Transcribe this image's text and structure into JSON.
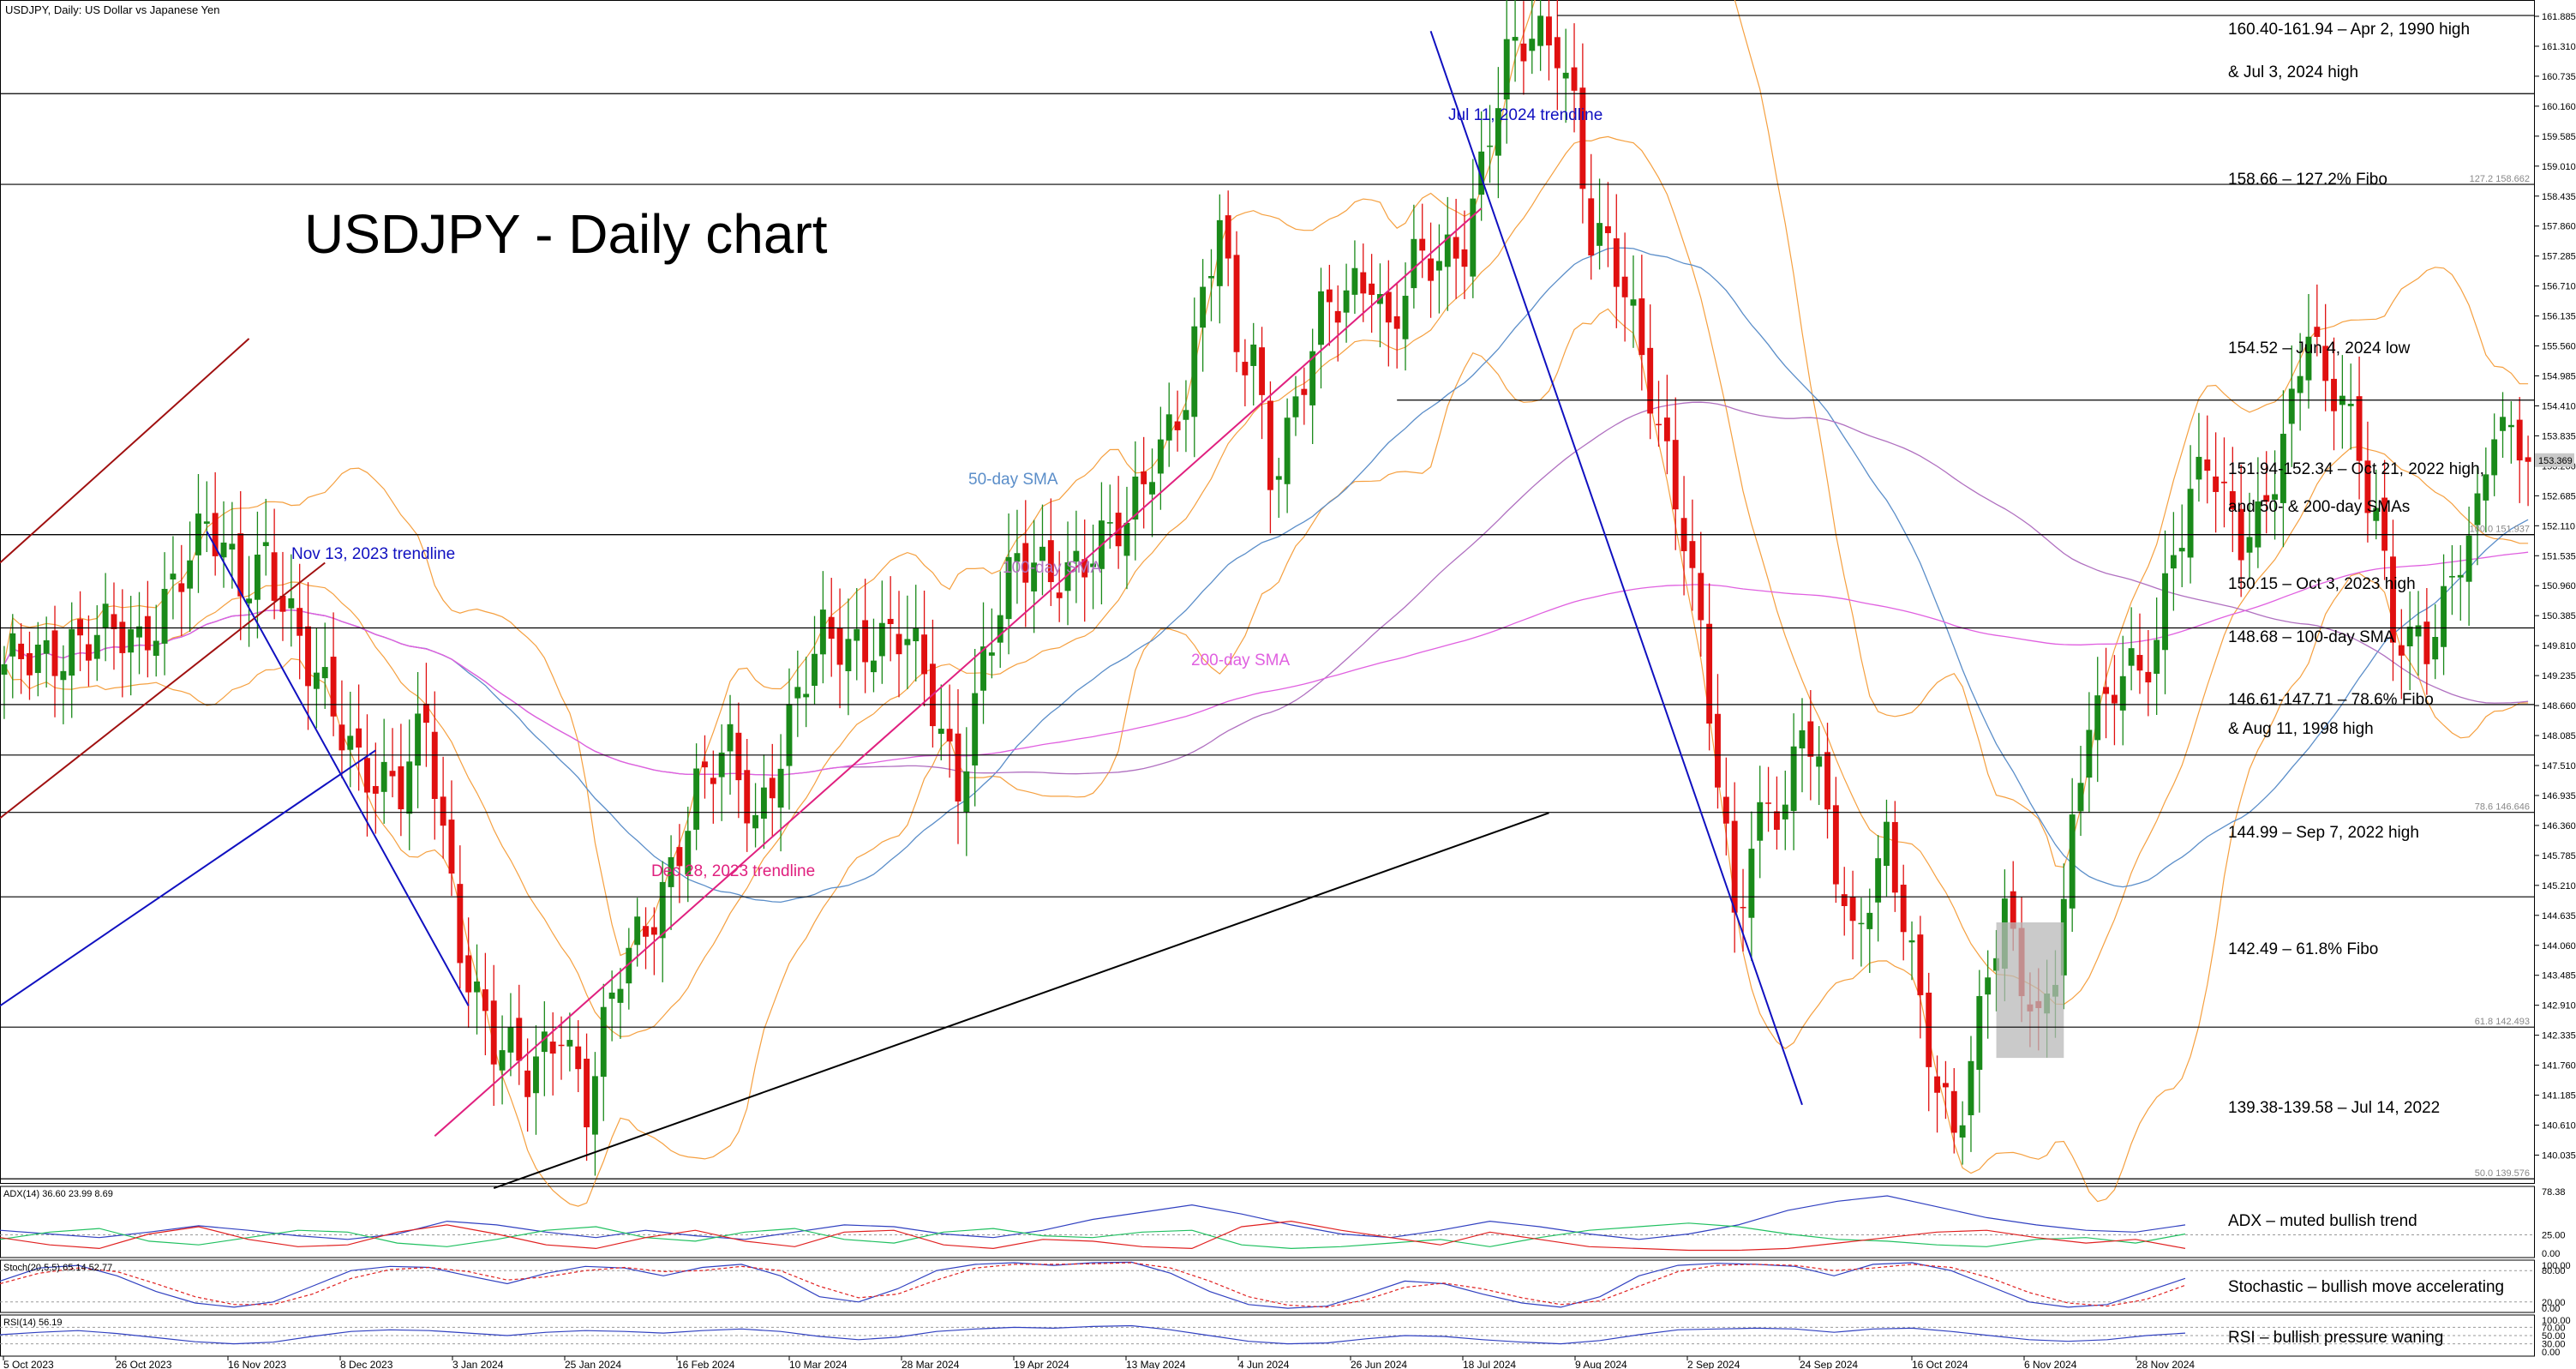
{
  "header": {
    "symbol_line": "USDJPY, Daily:  US Dollar vs Japanese Yen"
  },
  "title": "USDJPY - Daily chart",
  "colors": {
    "bull": "#1a8a1a",
    "bear": "#e01010",
    "bollinger": "#f5a040",
    "sma50": "#5b8ec9",
    "sma100": "#b070c0",
    "sma200": "#e060e0",
    "trend_red": "#a01010",
    "trend_blue": "#1010c0",
    "trend_pink": "#e0207f",
    "trend_black": "#000000",
    "adx": "#3040c0",
    "plus_di": "#20c060",
    "minus_di": "#e02020",
    "stoch_main": "#3040c0",
    "stoch_signal": "#e02020",
    "rsi": "#3040c0",
    "box_fill": "#b8b8b8"
  },
  "chart_data": [
    {
      "type": "candlestick",
      "title": "USDJPY - Daily chart",
      "ylim": [
        139.5,
        162.0
      ],
      "y_ticks": [
        "161.885",
        "161.310",
        "160.735",
        "160.160",
        "159.585",
        "159.010",
        "158.435",
        "157.860",
        "157.285",
        "156.710",
        "156.135",
        "155.560",
        "154.985",
        "154.410",
        "153.835",
        "153.260",
        "152.685",
        "152.110",
        "151.535",
        "150.960",
        "150.385",
        "149.810",
        "149.235",
        "148.660",
        "148.085",
        "147.510",
        "146.935",
        "146.360",
        "145.785",
        "145.210",
        "144.635",
        "144.060",
        "143.485",
        "142.910",
        "142.335",
        "141.760",
        "141.185",
        "140.610",
        "140.035"
      ],
      "x_ticks": [
        "5 Oct 2023",
        "26 Oct 2023",
        "16 Nov 2023",
        "8 Dec 2023",
        "3 Jan 2024",
        "25 Jan 2024",
        "16 Feb 2024",
        "10 Mar 2024",
        "28 Mar 2024",
        "19 Apr 2024",
        "13 May 2024",
        "4 Jun 2024",
        "26 Jun 2024",
        "18 Jul 2024",
        "9 Aug 2024",
        "2 Sep 2024",
        "24 Sep 2024",
        "16 Oct 2024",
        "6 Nov 2024",
        "28 Nov 2024"
      ],
      "price_path": [
        [
          0,
          149.2
        ],
        [
          8,
          150.0
        ],
        [
          16,
          149.8
        ],
        [
          20,
          151.2
        ],
        [
          24,
          151.9
        ],
        [
          28,
          151.0
        ],
        [
          31,
          151.8
        ],
        [
          36,
          149.2
        ],
        [
          42,
          147.8
        ],
        [
          47,
          146.9
        ],
        [
          50,
          148.2
        ],
        [
          54,
          144.3
        ],
        [
          58,
          142.1
        ],
        [
          62,
          141.4
        ],
        [
          66,
          142.8
        ],
        [
          69,
          141.0
        ],
        [
          73,
          143.4
        ],
        [
          77,
          144.9
        ],
        [
          82,
          146.9
        ],
        [
          86,
          147.7
        ],
        [
          89,
          146.6
        ],
        [
          93,
          148.3
        ],
        [
          97,
          149.8
        ],
        [
          103,
          150.1
        ],
        [
          107,
          149.8
        ],
        [
          110,
          148.6
        ],
        [
          113,
          147.3
        ],
        [
          116,
          149.6
        ],
        [
          120,
          151.2
        ],
        [
          127,
          151.5
        ],
        [
          130,
          151.6
        ],
        [
          133,
          152.0
        ],
        [
          136,
          153.6
        ],
        [
          140,
          154.7
        ],
        [
          144,
          157.8
        ],
        [
          146,
          155.4
        ],
        [
          148,
          155.7
        ],
        [
          150,
          153.3
        ],
        [
          153,
          154.2
        ],
        [
          156,
          155.9
        ],
        [
          159,
          156.7
        ],
        [
          162,
          157.2
        ],
        [
          164,
          155.7
        ],
        [
          167,
          156.9
        ],
        [
          170,
          157.2
        ],
        [
          173,
          157.8
        ],
        [
          176,
          159.7
        ],
        [
          178,
          160.8
        ],
        [
          181,
          161.4
        ],
        [
          184,
          161.6
        ],
        [
          186,
          160.3
        ],
        [
          188,
          157.6
        ],
        [
          190,
          157.2
        ],
        [
          192,
          156.4
        ],
        [
          195,
          154.9
        ],
        [
          197,
          153.6
        ],
        [
          199,
          152.1
        ],
        [
          201,
          149.8
        ],
        [
          203,
          147.0
        ],
        [
          205,
          144.5
        ],
        [
          207,
          146.1
        ],
        [
          209,
          147.2
        ],
        [
          211,
          146.6
        ],
        [
          213,
          148.3
        ],
        [
          215,
          147.0
        ],
        [
          217,
          145.6
        ],
        [
          219,
          144.3
        ],
        [
          221,
          145.4
        ],
        [
          223,
          146.1
        ],
        [
          225,
          144.4
        ],
        [
          227,
          142.6
        ],
        [
          229,
          141.3
        ],
        [
          231,
          140.7
        ],
        [
          233,
          142.0
        ],
        [
          235,
          143.7
        ],
        [
          237,
          144.4
        ],
        [
          239,
          143.2
        ],
        [
          241,
          142.4
        ],
        [
          243,
          144.0
        ],
        [
          245,
          146.4
        ],
        [
          247,
          148.6
        ],
        [
          249,
          148.3
        ],
        [
          251,
          149.2
        ],
        [
          253,
          149.2
        ],
        [
          255,
          150.2
        ],
        [
          257,
          151.9
        ],
        [
          259,
          152.6
        ],
        [
          261,
          153.2
        ],
        [
          263,
          152.3
        ],
        [
          265,
          151.9
        ],
        [
          267,
          152.4
        ],
        [
          269,
          153.4
        ],
        [
          271,
          154.3
        ],
        [
          273,
          155.8
        ],
        [
          275,
          154.4
        ],
        [
          277,
          154.8
        ],
        [
          279,
          153.6
        ],
        [
          281,
          152.6
        ],
        [
          283,
          150.0
        ],
        [
          285,
          149.6
        ],
        [
          287,
          149.6
        ],
        [
          289,
          150.6
        ],
        [
          291,
          151.9
        ],
        [
          293,
          152.5
        ],
        [
          295,
          154.1
        ],
        [
          297,
          153.4
        ]
      ],
      "horizontal_levels": [
        {
          "price": 161.9,
          "label": "160.40-161.94 – Apr 2, 1990 high"
        },
        {
          "price": 160.4,
          "label": "& Jul 3, 2024 high"
        },
        {
          "price": 158.66,
          "label": "158.66 – 127.2% Fibo",
          "fibo_tag": "127.2 158.662"
        },
        {
          "price": 154.52,
          "label": "154.52 – Jun 4, 2024 low"
        },
        {
          "price": 151.94,
          "label": "151.94-152.34 – Oct 21, 2022 high,",
          "fibo_tag": "100.0 151.937"
        },
        {
          "price": 151.94,
          "label": "and 50- & 200-day SMAs"
        },
        {
          "price": 150.15,
          "label": "150.15 – Oct 3, 2023 high"
        },
        {
          "price": 148.68,
          "label": "148.68 – 100-day SMA"
        },
        {
          "price": 147.71,
          "label": "146.61-147.71 – 78.6% Fibo"
        },
        {
          "price": 146.61,
          "label": "& Aug 11, 1998 high",
          "fibo_tag": "78.6 146.646"
        },
        {
          "price": 144.99,
          "label": "144.99 – Sep 7, 2022 high"
        },
        {
          "price": 142.49,
          "label": "142.49 – 61.8% Fibo",
          "fibo_tag": "61.8 142.493"
        },
        {
          "price": 139.58,
          "label": "139.38-139.58 – Jul 14, 2022",
          "fibo_tag": "50.0 139.576"
        }
      ],
      "current_price": "153.369",
      "annotations": [
        "Nov 13, 2023 trendline",
        "Dec 28, 2023 trendline",
        "Jul 11, 2024 trendline",
        "50-day SMA",
        "100-day SMA",
        "200-day SMA"
      ]
    },
    {
      "type": "line",
      "title": "ADX(14) 36.60 23.99 8.69",
      "ylim": [
        0,
        78.38
      ],
      "y_ticks": [
        "78.38",
        "25.00",
        "0.00"
      ],
      "series": [
        {
          "name": "ADX",
          "values": [
            30,
            26,
            22,
            28,
            35,
            30,
            24,
            20,
            26,
            40,
            36,
            28,
            22,
            30,
            24,
            20,
            28,
            36,
            34,
            26,
            22,
            30,
            42,
            50,
            58,
            48,
            36,
            26,
            22,
            30,
            40,
            34,
            26,
            20,
            26,
            36,
            52,
            62,
            68,
            56,
            44,
            36,
            30,
            28,
            36
          ]
        },
        {
          "name": "+DI",
          "values": [
            20,
            28,
            32,
            18,
            14,
            22,
            30,
            28,
            16,
            12,
            20,
            30,
            34,
            22,
            18,
            28,
            32,
            20,
            16,
            28,
            32,
            24,
            22,
            28,
            30,
            14,
            10,
            12,
            16,
            20,
            12,
            22,
            30,
            34,
            38,
            34,
            26,
            20,
            18,
            14,
            12,
            20,
            22,
            16,
            26
          ]
        },
        {
          "name": "-DI",
          "values": [
            22,
            14,
            10,
            26,
            34,
            20,
            12,
            14,
            28,
            36,
            26,
            14,
            10,
            22,
            30,
            18,
            12,
            28,
            30,
            14,
            10,
            20,
            18,
            12,
            10,
            34,
            40,
            30,
            22,
            14,
            28,
            20,
            12,
            10,
            8,
            8,
            10,
            16,
            22,
            28,
            30,
            22,
            16,
            20,
            10
          ]
        }
      ],
      "annotation": "ADX – muted bullish trend"
    },
    {
      "type": "line",
      "title": "Stoch(20,5,5) 65.14 52.77",
      "ylim": [
        0,
        100
      ],
      "y_ticks": [
        "100.00",
        "80.00",
        "20.00",
        "0.00"
      ],
      "series": [
        {
          "name": "Main",
          "values": [
            60,
            85,
            90,
            70,
            40,
            18,
            10,
            20,
            50,
            80,
            88,
            86,
            70,
            55,
            75,
            88,
            85,
            70,
            86,
            92,
            70,
            30,
            20,
            45,
            80,
            92,
            95,
            90,
            95,
            96,
            75,
            40,
            15,
            8,
            12,
            35,
            60,
            55,
            35,
            18,
            10,
            30,
            70,
            90,
            94,
            92,
            88,
            70,
            92,
            95,
            80,
            50,
            20,
            10,
            15,
            40,
            65
          ]
        },
        {
          "name": "Signal",
          "values": [
            55,
            75,
            85,
            78,
            55,
            30,
            15,
            15,
            35,
            65,
            82,
            86,
            78,
            62,
            68,
            80,
            86,
            78,
            80,
            88,
            80,
            50,
            28,
            35,
            62,
            85,
            92,
            92,
            93,
            95,
            85,
            60,
            30,
            14,
            10,
            24,
            48,
            56,
            45,
            28,
            15,
            22,
            50,
            78,
            90,
            92,
            90,
            80,
            85,
            92,
            86,
            66,
            38,
            18,
            12,
            25,
            52
          ]
        }
      ],
      "annotation": "Stochastic – bullish move accelerating"
    },
    {
      "type": "line",
      "title": "RSI(14) 56.19",
      "ylim": [
        0,
        100
      ],
      "y_ticks": [
        "100.00",
        "70.00",
        "50.00",
        "30.00",
        "0.00"
      ],
      "series": [
        {
          "name": "RSI",
          "values": [
            52,
            58,
            62,
            55,
            45,
            35,
            30,
            34,
            48,
            60,
            64,
            62,
            56,
            50,
            58,
            62,
            60,
            56,
            62,
            66,
            60,
            48,
            40,
            46,
            60,
            66,
            70,
            68,
            72,
            74,
            64,
            50,
            36,
            30,
            32,
            42,
            50,
            48,
            40,
            34,
            30,
            38,
            52,
            64,
            66,
            68,
            66,
            58,
            66,
            68,
            60,
            50,
            40,
            36,
            40,
            50,
            56
          ]
        }
      ],
      "annotation": "RSI – bullish pressure waning"
    }
  ]
}
